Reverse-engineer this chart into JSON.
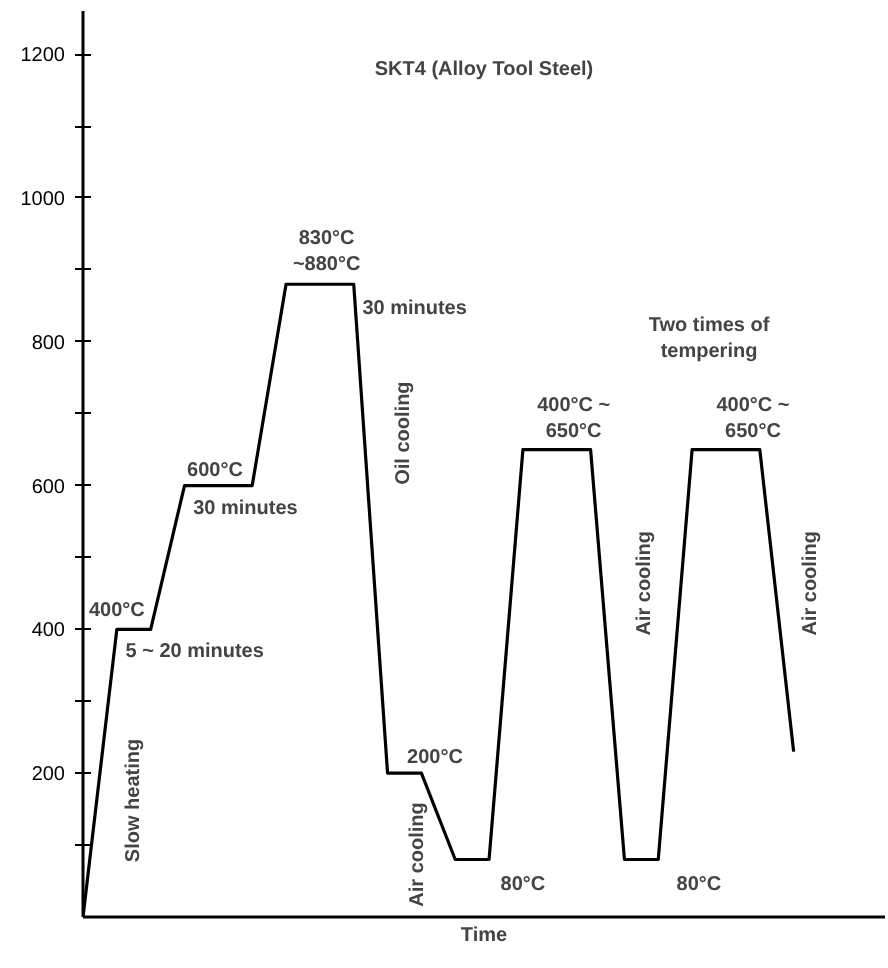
{
  "chart_data": {
    "type": "line",
    "title": "SKT4 (Alloy Tool Steel)",
    "xlabel": "Time",
    "categories": [
      null,
      null,
      null,
      null,
      null,
      null,
      null,
      null,
      null,
      null,
      null,
      null,
      null,
      null,
      null,
      null,
      null,
      null,
      null,
      null,
      null,
      null
    ],
    "series": [
      {
        "color": "#000000",
        "values": [
          0,
          400,
          400,
          600,
          600,
          600,
          880,
          880,
          880,
          200,
          200,
          80,
          80,
          650,
          650,
          650,
          80,
          80,
          650,
          650,
          650,
          230
        ]
      }
    ],
    "ylim": [
      0,
      1260
    ],
    "yticks": [
      {
        "value": 100,
        "label": null
      },
      200,
      {
        "value": 300,
        "label": null
      },
      400,
      {
        "value": 500,
        "label": null
      },
      600,
      {
        "value": 700,
        "label": null
      },
      800,
      {
        "value": 900,
        "label": null
      },
      1000,
      {
        "value": 1100,
        "label": null
      },
      1200
    ],
    "tick_labels": "y",
    "grid": false,
    "marker": "none",
    "line_style": "solid",
    "annotations": [
      "400°C",
      "5 ~ 20 minutes",
      "600°C",
      "30 minutes",
      "830°C\n~880°C",
      "30 minutes",
      "Oil cooling",
      "Slow heating",
      "200°C",
      "Air cooling",
      "80°C",
      "400°C ~\n650°C",
      "Air cooling",
      "80°C",
      "Two times of\ntempering",
      "400°C ~\n650°C",
      "Air cooling"
    ]
  }
}
